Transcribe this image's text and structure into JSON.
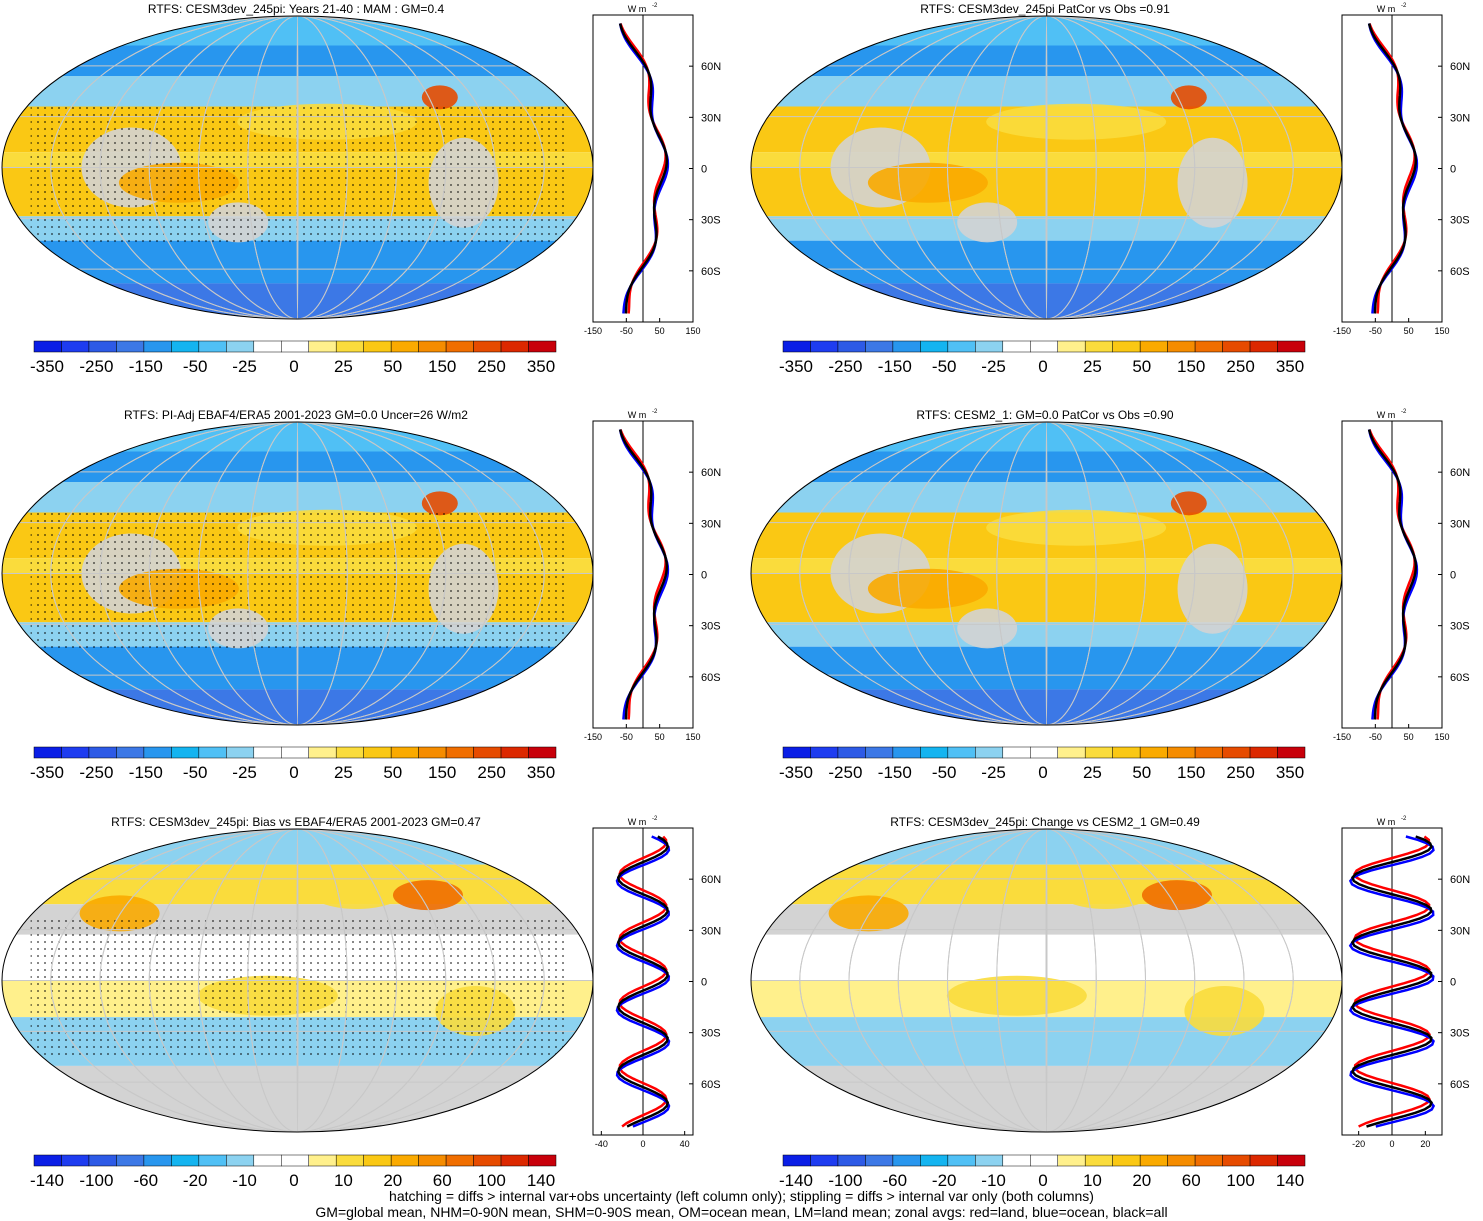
{
  "panels": [
    {
      "title": "RTFS: CESM3dev_245pi: Years 21-40 : MAM : GM=0.4",
      "colorbar": {
        "labels": [
          "-350",
          "-250",
          "-150",
          "-50",
          "-25",
          "0",
          "25",
          "50",
          "150",
          "250",
          "350"
        ]
      },
      "zonal": {
        "unit": "W m",
        "unit_exp": "-2",
        "xticks": [
          "-150",
          "-50",
          "50",
          "150"
        ],
        "xlim": [
          -150,
          150
        ],
        "marker": 0
      }
    },
    {
      "title": "RTFS: CESM3dev_245pi PatCor vs Obs =0.91",
      "colorbar": {
        "labels": [
          "-350",
          "-250",
          "-150",
          "-50",
          "-25",
          "0",
          "25",
          "50",
          "150",
          "250",
          "350"
        ]
      },
      "zonal": {
        "unit": "W m",
        "unit_exp": "-2",
        "xticks": [
          "-150",
          "-50",
          "50",
          "150"
        ],
        "xlim": [
          -150,
          150
        ],
        "marker": 0
      }
    },
    {
      "title": "RTFS: PI-Adj EBAF4/ERA5 2001-2023 GM=0.0 Uncer=26 W/m2",
      "colorbar": {
        "labels": [
          "-350",
          "-250",
          "-150",
          "-50",
          "-25",
          "0",
          "25",
          "50",
          "150",
          "250",
          "350"
        ]
      },
      "zonal": {
        "unit": "W m",
        "unit_exp": "-2",
        "xticks": [
          "-150",
          "-50",
          "50",
          "150"
        ],
        "xlim": [
          -150,
          150
        ],
        "marker": 0
      }
    },
    {
      "title": "RTFS: CESM2_1: GM=0.0 PatCor vs Obs =0.90",
      "colorbar": {
        "labels": [
          "-350",
          "-250",
          "-150",
          "-50",
          "-25",
          "0",
          "25",
          "50",
          "150",
          "250",
          "350"
        ]
      },
      "zonal": {
        "unit": "W m",
        "unit_exp": "-2",
        "xticks": [
          "-150",
          "-50",
          "50",
          "150"
        ],
        "xlim": [
          -150,
          150
        ],
        "marker": 0
      }
    },
    {
      "title": "RTFS: CESM3dev_245pi: Bias vs EBAF4/ERA5 2001-2023 GM=0.47",
      "colorbar": {
        "labels": [
          "-140",
          "-100",
          "-60",
          "-20",
          "-10",
          "0",
          "10",
          "20",
          "60",
          "100",
          "140"
        ]
      },
      "zonal": {
        "unit": "W m",
        "unit_exp": "-2",
        "xticks": [
          "-40",
          "0",
          "40"
        ],
        "xlim": [
          -48,
          48
        ],
        "marker": 0
      }
    },
    {
      "title": "RTFS: CESM3dev_245pi: Change vs CESM2_1 GM=0.49",
      "colorbar": {
        "labels": [
          "-140",
          "-100",
          "-60",
          "-20",
          "-10",
          "0",
          "10",
          "20",
          "60",
          "100",
          "140"
        ]
      },
      "zonal": {
        "unit": "W m",
        "unit_exp": "-2",
        "xticks": [
          "-20",
          "0",
          "20"
        ],
        "xlim": [
          -30,
          30
        ],
        "marker": 0
      }
    }
  ],
  "lat_labels": [
    "60N",
    "30N",
    "0",
    "30S",
    "60S"
  ],
  "colors": {
    "scale": [
      "#0a1ee6",
      "#1e3cf0",
      "#2d5ae6",
      "#3c78e6",
      "#2896ee",
      "#14b4f0",
      "#50c0f5",
      "#8cd2f0",
      "#ffffff",
      "#ffffff",
      "#fff08c",
      "#fadc3c",
      "#fac814",
      "#faaa00",
      "#f58c00",
      "#f06e00",
      "#e64b00",
      "#dc2800",
      "#c8000a"
    ],
    "land_series": "#ff0000",
    "ocean_series": "#0000ff",
    "all_series": "#000000"
  },
  "chart_data": [
    {
      "type": "heatmap",
      "title": "RTFS: CESM3dev_245pi: Years 21-40 : MAM : GM=0.4"
    },
    {
      "type": "heatmap",
      "title": "RTFS: CESM3dev_245pi PatCor vs Obs =0.91"
    },
    {
      "type": "heatmap",
      "title": "RTFS: PI-Adj EBAF4/ERA5 2001-2023 GM=0.0 Uncer=26 W/m2"
    },
    {
      "type": "heatmap",
      "title": "RTFS: CESM2_1: GM=0.0 PatCor vs Obs =0.90"
    },
    {
      "type": "heatmap",
      "title": "RTFS: CESM3dev_245pi: Bias vs EBAF4/ERA5 2001-2023 GM=0.47"
    },
    {
      "type": "heatmap",
      "title": "RTFS: CESM3dev_245pi: Change vs CESM2_1 GM=0.49"
    }
  ],
  "footer": {
    "line1": "hatching = diffs > internal var+obs uncertainty (left column only); stippling = diffs > internal var only (both columns)",
    "line2": "GM=global mean, NHM=0-90N mean, SHM=0-90S mean, OM=ocean mean, LM=land mean; zonal avgs: red=land, blue=ocean, black=all"
  }
}
